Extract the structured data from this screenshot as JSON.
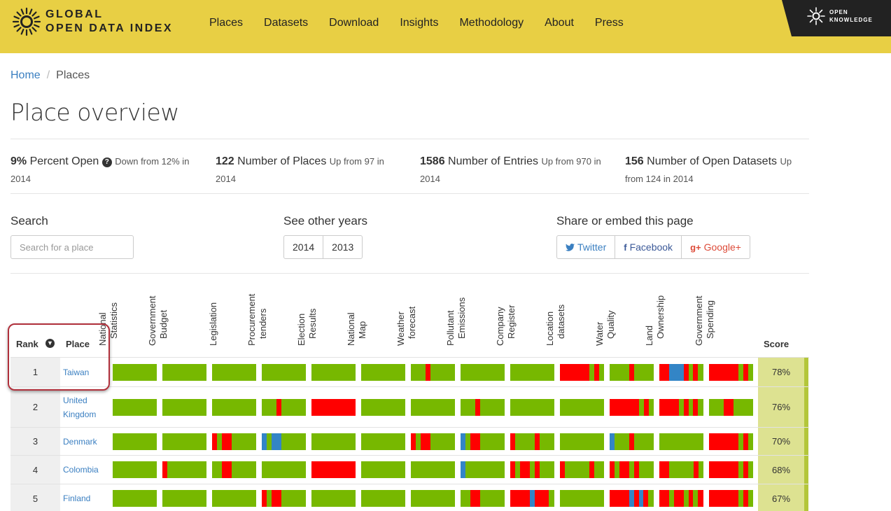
{
  "header": {
    "logo_line1": "GLOBAL",
    "logo_line2": "OPEN DATA INDEX",
    "nav": [
      "Places",
      "Datasets",
      "Download",
      "Insights",
      "Methodology",
      "About",
      "Press"
    ],
    "badge_line1": "OPEN",
    "badge_line2": "KNOWLEDGE"
  },
  "breadcrumb": {
    "home": "Home",
    "sep": "/",
    "current": "Places"
  },
  "page_title": "Place overview",
  "stats": [
    {
      "value": "9%",
      "label": "Percent Open",
      "change": "Down from 12% in 2014",
      "help": "?"
    },
    {
      "value": "122",
      "label": "Number of Places",
      "change": "Up from 97 in 2014"
    },
    {
      "value": "1586",
      "label": "Number of Entries",
      "change": "Up from 970 in 2014"
    },
    {
      "value": "156",
      "label": "Number of Open Datasets",
      "change": "Up from 124 in 2014"
    }
  ],
  "search": {
    "label": "Search",
    "placeholder": "Search for a place"
  },
  "years": {
    "label": "See other years",
    "options": [
      "2014",
      "2013"
    ]
  },
  "share": {
    "label": "Share or embed this page",
    "twitter": "Twitter",
    "facebook": "Facebook",
    "google": "Google+"
  },
  "colors": {
    "green": "#77b800",
    "red": "#ff0000",
    "blue": "#3385c6",
    "header": "#e8cf44",
    "link": "#3a7fc1"
  },
  "table": {
    "rank_header": "Rank",
    "place_header": "Place",
    "score_header": "Score",
    "datasets": [
      [
        "National",
        "Statistics"
      ],
      [
        "Government",
        "Budget"
      ],
      [
        "Legislation"
      ],
      [
        "Procurement",
        "tenders"
      ],
      [
        "Election",
        "Results"
      ],
      [
        "National",
        "Map"
      ],
      [
        "Weather",
        "forecast"
      ],
      [
        "Pollutant",
        "Emissions"
      ],
      [
        "Company",
        "Register"
      ],
      [
        "Location",
        "datasets"
      ],
      [
        "Water",
        "Quality"
      ],
      [
        "Land",
        "Ownership"
      ],
      [
        "Government",
        "Spending"
      ]
    ],
    "rows": [
      {
        "rank": "1",
        "place": "Taiwan",
        "score": "78%",
        "bars": [
          [
            [
              "g",
              1
            ]
          ],
          [
            [
              "g",
              1
            ]
          ],
          [
            [
              "g",
              1
            ]
          ],
          [
            [
              "g",
              1
            ]
          ],
          [
            [
              "g",
              1
            ]
          ],
          [
            [
              "g",
              1
            ]
          ],
          [
            [
              "g",
              0.33
            ],
            [
              "r",
              0.11
            ],
            [
              "g",
              0.56
            ]
          ],
          [
            [
              "g",
              1
            ]
          ],
          [
            [
              "g",
              1
            ]
          ],
          [
            [
              "r",
              0.67
            ],
            [
              "g",
              0.11
            ],
            [
              "r",
              0.11
            ],
            [
              "g",
              0.11
            ]
          ],
          [
            [
              "g",
              0.44
            ],
            [
              "r",
              0.11
            ],
            [
              "g",
              0.45
            ]
          ],
          [
            [
              "r",
              0.22
            ],
            [
              "b",
              0.33
            ],
            [
              "r",
              0.11
            ],
            [
              "g",
              0.11
            ],
            [
              "r",
              0.11
            ],
            [
              "g",
              0.12
            ]
          ],
          [
            [
              "r",
              0.67
            ],
            [
              "g",
              0.11
            ],
            [
              "r",
              0.11
            ],
            [
              "g",
              0.11
            ]
          ]
        ]
      },
      {
        "rank": "2",
        "place": "United Kingdom",
        "score": "76%",
        "bars": [
          [
            [
              "g",
              1
            ]
          ],
          [
            [
              "g",
              1
            ]
          ],
          [
            [
              "g",
              1
            ]
          ],
          [
            [
              "g",
              0.33
            ],
            [
              "r",
              0.11
            ],
            [
              "g",
              0.56
            ]
          ],
          [
            [
              "r",
              1
            ]
          ],
          [
            [
              "g",
              1
            ]
          ],
          [
            [
              "g",
              1
            ]
          ],
          [
            [
              "g",
              0.33
            ],
            [
              "r",
              0.11
            ],
            [
              "g",
              0.56
            ]
          ],
          [
            [
              "g",
              1
            ]
          ],
          [
            [
              "g",
              1
            ]
          ],
          [
            [
              "r",
              0.67
            ],
            [
              "g",
              0.11
            ],
            [
              "r",
              0.11
            ],
            [
              "g",
              0.11
            ]
          ],
          [
            [
              "r",
              0.44
            ],
            [
              "g",
              0.11
            ],
            [
              "r",
              0.11
            ],
            [
              "g",
              0.11
            ],
            [
              "r",
              0.11
            ],
            [
              "g",
              0.12
            ]
          ],
          [
            [
              "g",
              0.33
            ],
            [
              "r",
              0.22
            ],
            [
              "g",
              0.45
            ]
          ]
        ]
      },
      {
        "rank": "3",
        "place": "Denmark",
        "score": "70%",
        "bars": [
          [
            [
              "g",
              1
            ]
          ],
          [
            [
              "g",
              1
            ]
          ],
          [
            [
              "r",
              0.11
            ],
            [
              "g",
              0.11
            ],
            [
              "r",
              0.22
            ],
            [
              "g",
              0.56
            ]
          ],
          [
            [
              "b",
              0.11
            ],
            [
              "g",
              0.11
            ],
            [
              "b",
              0.22
            ],
            [
              "g",
              0.56
            ]
          ],
          [
            [
              "g",
              1
            ]
          ],
          [
            [
              "g",
              1
            ]
          ],
          [
            [
              "r",
              0.11
            ],
            [
              "g",
              0.11
            ],
            [
              "r",
              0.22
            ],
            [
              "g",
              0.56
            ]
          ],
          [
            [
              "b",
              0.11
            ],
            [
              "g",
              0.11
            ],
            [
              "r",
              0.22
            ],
            [
              "g",
              0.56
            ]
          ],
          [
            [
              "r",
              0.11
            ],
            [
              "g",
              0.44
            ],
            [
              "r",
              0.11
            ],
            [
              "g",
              0.34
            ]
          ],
          [
            [
              "g",
              1
            ]
          ],
          [
            [
              "b",
              0.11
            ],
            [
              "g",
              0.33
            ],
            [
              "r",
              0.11
            ],
            [
              "g",
              0.45
            ]
          ],
          [
            [
              "g",
              1
            ]
          ],
          [
            [
              "r",
              0.67
            ],
            [
              "g",
              0.11
            ],
            [
              "r",
              0.11
            ],
            [
              "g",
              0.11
            ]
          ]
        ]
      },
      {
        "rank": "4",
        "place": "Colombia",
        "score": "68%",
        "bars": [
          [
            [
              "g",
              1
            ]
          ],
          [
            [
              "r",
              0.11
            ],
            [
              "g",
              0.89
            ]
          ],
          [
            [
              "g",
              0.22
            ],
            [
              "r",
              0.22
            ],
            [
              "g",
              0.56
            ]
          ],
          [
            [
              "g",
              1
            ]
          ],
          [
            [
              "r",
              1
            ]
          ],
          [
            [
              "g",
              1
            ]
          ],
          [
            [
              "g",
              1
            ]
          ],
          [
            [
              "b",
              0.11
            ],
            [
              "g",
              0.89
            ]
          ],
          [
            [
              "r",
              0.11
            ],
            [
              "g",
              0.11
            ],
            [
              "r",
              0.22
            ],
            [
              "g",
              0.11
            ],
            [
              "r",
              0.11
            ],
            [
              "g",
              0.34
            ]
          ],
          [
            [
              "r",
              0.11
            ],
            [
              "g",
              0.56
            ],
            [
              "r",
              0.11
            ],
            [
              "g",
              0.22
            ]
          ],
          [
            [
              "r",
              0.11
            ],
            [
              "g",
              0.11
            ],
            [
              "r",
              0.22
            ],
            [
              "g",
              0.11
            ],
            [
              "r",
              0.11
            ],
            [
              "g",
              0.34
            ]
          ],
          [
            [
              "r",
              0.22
            ],
            [
              "g",
              0.56
            ],
            [
              "r",
              0.11
            ],
            [
              "g",
              0.11
            ]
          ],
          [
            [
              "r",
              0.67
            ],
            [
              "g",
              0.11
            ],
            [
              "r",
              0.11
            ],
            [
              "g",
              0.11
            ]
          ]
        ]
      },
      {
        "rank": "5",
        "place": "Finland",
        "score": "67%",
        "bars": [
          [
            [
              "g",
              1
            ]
          ],
          [
            [
              "g",
              1
            ]
          ],
          [
            [
              "g",
              1
            ]
          ],
          [
            [
              "r",
              0.11
            ],
            [
              "g",
              0.11
            ],
            [
              "r",
              0.22
            ],
            [
              "g",
              0.56
            ]
          ],
          [
            [
              "g",
              1
            ]
          ],
          [
            [
              "g",
              1
            ]
          ],
          [
            [
              "g",
              1
            ]
          ],
          [
            [
              "g",
              0.22
            ],
            [
              "r",
              0.22
            ],
            [
              "g",
              0.56
            ]
          ],
          [
            [
              "r",
              0.44
            ],
            [
              "b",
              0.11
            ],
            [
              "r",
              0.33
            ],
            [
              "g",
              0.12
            ]
          ],
          [
            [
              "g",
              1
            ]
          ],
          [
            [
              "r",
              0.44
            ],
            [
              "b",
              0.11
            ],
            [
              "r",
              0.11
            ],
            [
              "b",
              0.11
            ],
            [
              "r",
              0.11
            ],
            [
              "g",
              0.12
            ]
          ],
          [
            [
              "r",
              0.22
            ],
            [
              "g",
              0.11
            ],
            [
              "r",
              0.22
            ],
            [
              "g",
              0.11
            ],
            [
              "r",
              0.11
            ],
            [
              "g",
              0.11
            ],
            [
              "r",
              0.12
            ]
          ],
          [
            [
              "r",
              0.67
            ],
            [
              "g",
              0.11
            ],
            [
              "r",
              0.11
            ],
            [
              "g",
              0.11
            ]
          ]
        ]
      }
    ]
  }
}
